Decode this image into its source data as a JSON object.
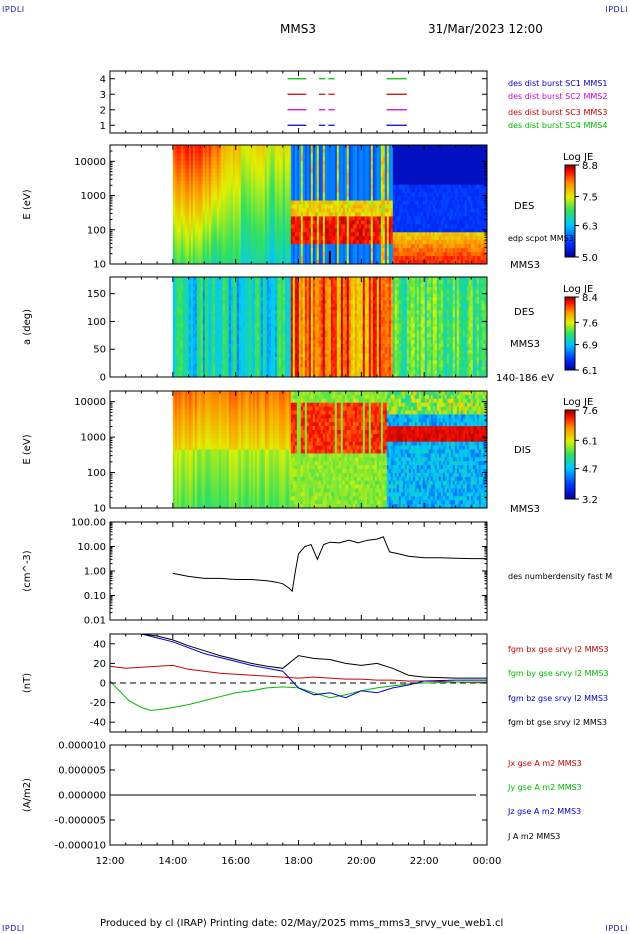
{
  "header": {
    "corner_left_top": "IPDLI",
    "corner_right_top": "IPDLI",
    "corner_left_bottom": "IPDLI",
    "corner_right_bottom": "IPDLI",
    "spacecraft": "MMS3",
    "datetime": "31/Mar/2023 12:00"
  },
  "footer": {
    "text": "Produced by cl (IRAP)   Printing date: 02/May/2025   mms_mms3_srvy_vue_web1.cl"
  },
  "colors": {
    "blue": "#0000cc",
    "magenta": "#cc00cc",
    "red": "#cc0000",
    "green": "#00bb00",
    "black": "#000000"
  },
  "chart_data": [
    {
      "type": "line",
      "panel": "burst-availability",
      "y_ticks": [
        "4",
        "3",
        "2",
        "1"
      ],
      "ylim": [
        0.5,
        4.5
      ],
      "legend": [
        {
          "name": "des dist burst SC1 MMS1",
          "color": "#0000cc",
          "row": 1
        },
        {
          "name": "des dist burst SC2 MMS2",
          "color": "#cc00cc",
          "row": 2
        },
        {
          "name": "des dist burst SC3 MMS3",
          "color": "#cc0000",
          "row": 3
        },
        {
          "name": "des dist burst SC4 MMS4",
          "color": "#00bb00",
          "row": 4
        }
      ],
      "burst_intervals_hours": [
        [
          17.65,
          18.25
        ],
        [
          18.65,
          18.85
        ],
        [
          18.95,
          19.15
        ],
        [
          20.8,
          21.45
        ]
      ]
    },
    {
      "type": "heatmap",
      "panel": "des-energy",
      "ylabel": "E (eV)",
      "y_scale": "log",
      "ylim": [
        10,
        30000
      ],
      "y_ticks": [
        "10000",
        "1000",
        "100",
        "10"
      ],
      "label": "DES",
      "sublabel": "MMS3",
      "overlay_label": "edp scpot MMS3",
      "colorbar": {
        "title": "Log JE",
        "ticks": [
          "8.8",
          "7.5",
          "6.3",
          "5.0"
        ],
        "range": [
          5.0,
          8.8
        ]
      }
    },
    {
      "type": "heatmap",
      "panel": "des-pitch-angle",
      "ylabel": "a (deg)",
      "ylim": [
        0,
        180
      ],
      "y_ticks": [
        "150",
        "100",
        "50",
        "0"
      ],
      "label": "DES",
      "sublabel": "MMS3",
      "energy_range": "140-186 eV",
      "colorbar": {
        "title": "Log JE",
        "ticks": [
          "8.4",
          "7.6",
          "6.9",
          "6.1"
        ],
        "range": [
          6.1,
          8.4
        ]
      }
    },
    {
      "type": "heatmap",
      "panel": "dis-energy",
      "ylabel": "E (eV)",
      "y_scale": "log",
      "ylim": [
        10,
        20000
      ],
      "y_ticks": [
        "10000",
        "1000",
        "100",
        "10"
      ],
      "label": "DIS",
      "sublabel": "MMS3",
      "colorbar": {
        "title": "Log JE",
        "ticks": [
          "7.6",
          "6.1",
          "4.7",
          "3.2"
        ],
        "range": [
          3.2,
          7.6
        ]
      }
    },
    {
      "type": "line",
      "panel": "density",
      "ylabel": "(cm^-3)",
      "y_scale": "log",
      "ylim": [
        0.01,
        100
      ],
      "y_ticks": [
        "100.00",
        "10.00",
        "1.00",
        "0.10",
        "0.01"
      ],
      "series": [
        {
          "name": "des numberdensity fast M",
          "color": "#000000",
          "x": [
            14.0,
            14.5,
            15.0,
            15.5,
            16.0,
            16.5,
            17.0,
            17.3,
            17.5,
            17.7,
            17.8,
            17.9,
            18.0,
            18.2,
            18.4,
            18.6,
            18.8,
            19.0,
            19.3,
            19.6,
            19.9,
            20.2,
            20.5,
            20.7,
            20.9,
            21.2,
            21.5,
            22.0,
            22.5,
            23.0,
            23.5,
            24.0
          ],
          "y": [
            0.8,
            0.6,
            0.5,
            0.5,
            0.45,
            0.45,
            0.4,
            0.35,
            0.3,
            0.2,
            0.15,
            1.0,
            5.0,
            10.0,
            12.0,
            3.0,
            12.0,
            15.0,
            14.0,
            18.0,
            14.0,
            18.0,
            20.0,
            25.0,
            6.0,
            5.0,
            4.0,
            3.5,
            3.5,
            3.3,
            3.2,
            3.2
          ]
        }
      ]
    },
    {
      "type": "line",
      "panel": "magnetic-field",
      "ylabel": "(nT)",
      "ylim": [
        -50,
        50
      ],
      "y_ticks": [
        "40",
        "20",
        "0",
        "-20",
        "-40"
      ],
      "series": [
        {
          "name": "fgm bx gse srvy l2 MMS3",
          "color": "#cc0000",
          "x": [
            12.0,
            12.5,
            13.0,
            13.5,
            14.0,
            14.5,
            15.0,
            15.5,
            16.0,
            16.5,
            17.0,
            17.5,
            18.0,
            18.5,
            19.0,
            19.5,
            20.0,
            20.5,
            21.0,
            21.5,
            22.0,
            23.0,
            24.0
          ],
          "y": [
            17,
            15,
            16,
            17,
            18,
            14,
            12,
            10,
            9,
            8,
            7,
            6,
            5,
            6,
            5,
            4,
            4,
            3,
            3,
            2,
            2,
            1,
            0
          ]
        },
        {
          "name": "fgm by gse srvy l2 MMS3",
          "color": "#00bb00",
          "x": [
            12.0,
            12.3,
            12.6,
            13.0,
            13.3,
            13.6,
            14.0,
            14.5,
            15.0,
            15.5,
            16.0,
            16.5,
            17.0,
            17.5,
            18.0,
            18.5,
            19.0,
            19.5,
            20.0,
            20.5,
            21.0,
            21.5,
            22.0,
            23.0,
            24.0
          ],
          "y": [
            2,
            -8,
            -18,
            -25,
            -28,
            -27,
            -25,
            -22,
            -18,
            -14,
            -10,
            -8,
            -5,
            -4,
            -5,
            -10,
            -15,
            -12,
            -8,
            -5,
            -3,
            -1,
            0,
            1,
            1
          ]
        },
        {
          "name": "fgm bz gse srvy l2 MMS3",
          "color": "#0000cc",
          "x": [
            13.0,
            13.5,
            14.0,
            14.5,
            15.0,
            15.5,
            16.0,
            16.5,
            17.0,
            17.5,
            18.0,
            18.5,
            19.0,
            19.5,
            20.0,
            20.5,
            21.0,
            21.5,
            22.0,
            23.0,
            24.0
          ],
          "y": [
            50,
            46,
            42,
            36,
            30,
            26,
            22,
            18,
            15,
            12,
            -5,
            -12,
            -10,
            -15,
            -8,
            -10,
            -5,
            -2,
            2,
            3,
            3
          ]
        },
        {
          "name": "fgm bt gse srvy l2 MMS3",
          "color": "#000000",
          "x": [
            13.0,
            13.5,
            14.0,
            14.5,
            15.0,
            15.5,
            16.0,
            16.5,
            17.0,
            17.5,
            18.0,
            18.5,
            19.0,
            19.5,
            20.0,
            20.5,
            21.0,
            21.5,
            22.0,
            23.0,
            24.0
          ],
          "y": [
            50,
            48,
            44,
            38,
            33,
            28,
            24,
            20,
            17,
            15,
            28,
            25,
            24,
            20,
            18,
            20,
            15,
            8,
            6,
            5,
            5
          ]
        }
      ]
    },
    {
      "type": "line",
      "panel": "current-density",
      "ylabel": "(A/m2)",
      "ylim": [
        -1e-05,
        1e-05
      ],
      "y_ticks": [
        "0.000010",
        "0.000005",
        "0.000000",
        "-0.000005",
        "-0.000010"
      ],
      "series": [
        {
          "name": "Jx gse A m2 MMS3",
          "color": "#cc0000"
        },
        {
          "name": "Jy gse A m2 MMS3",
          "color": "#00bb00"
        },
        {
          "name": "Jz gse A m2 MMS3",
          "color": "#0000cc"
        },
        {
          "name": "J A m2 MMS3",
          "color": "#000000"
        }
      ]
    }
  ],
  "x_axis": {
    "xlim": [
      12,
      24
    ],
    "ticks": [
      "12:00",
      "14:00",
      "16:00",
      "18:00",
      "20:00",
      "22:00",
      "00:00"
    ]
  }
}
